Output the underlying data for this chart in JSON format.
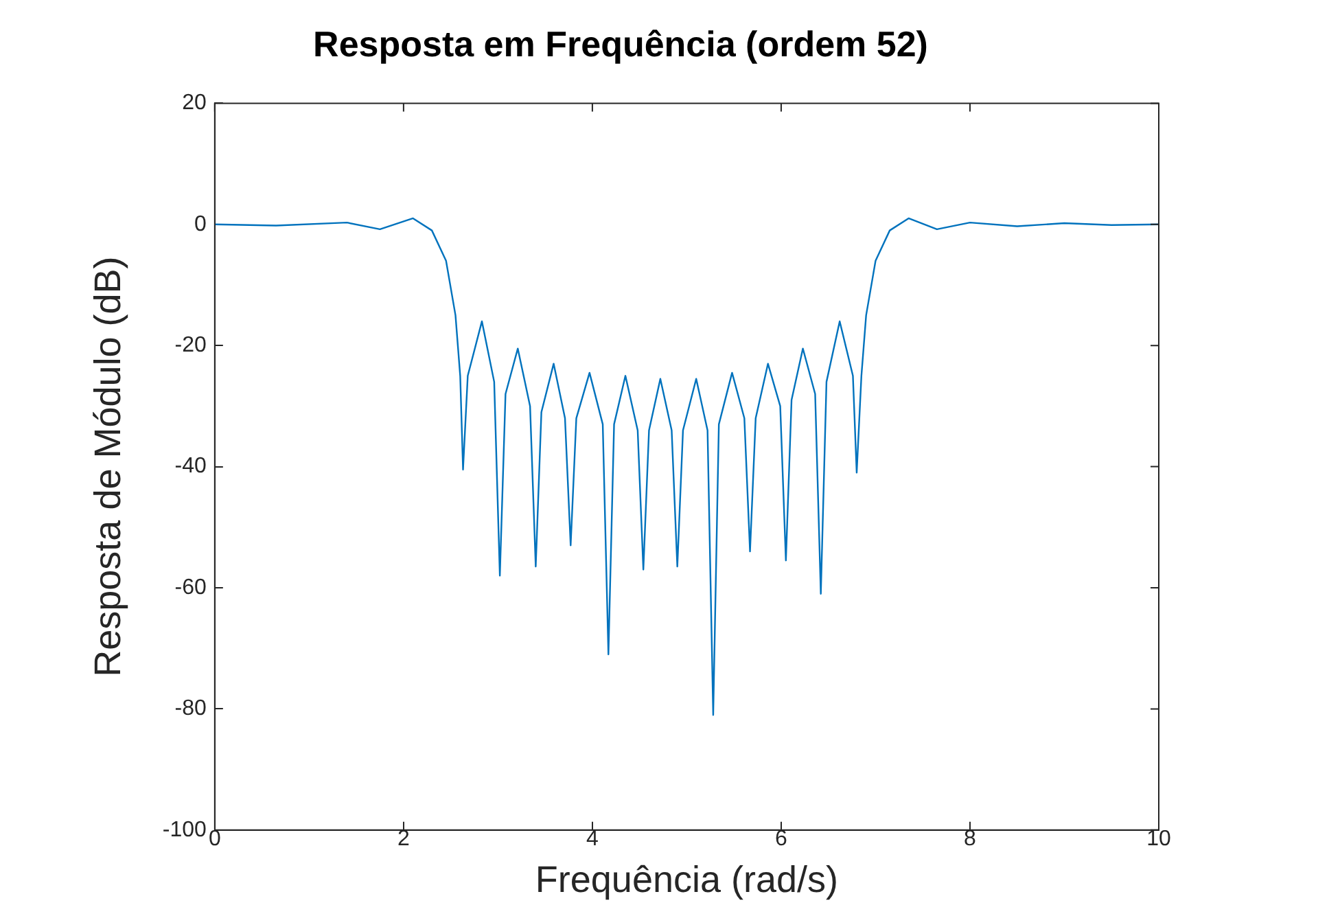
{
  "chart_data": {
    "type": "line",
    "title": "Resposta em Frequência (ordem 52)",
    "xlabel": "Frequência (rad/s)",
    "ylabel": "Resposta de Módulo (dB)",
    "xlim": [
      0,
      10
    ],
    "xticks": [
      0,
      2,
      4,
      6,
      8,
      10
    ],
    "ylim": [
      -100,
      20
    ],
    "yticks": [
      -100,
      -80,
      -60,
      -40,
      -20,
      0,
      20
    ],
    "grid": false,
    "legend": false,
    "marker": "none",
    "line_style": "solid",
    "series": [
      {
        "color": "#0072bd",
        "x": [
          0,
          0.65,
          1.4,
          1.75,
          2.1,
          2.3,
          2.45,
          2.55,
          2.6,
          2.63,
          2.68,
          2.83,
          2.96,
          3.02,
          3.08,
          3.21,
          3.34,
          3.4,
          3.46,
          3.59,
          3.71,
          3.77,
          3.83,
          3.97,
          4.11,
          4.17,
          4.23,
          4.35,
          4.48,
          4.54,
          4.6,
          4.72,
          4.84,
          4.9,
          4.96,
          5.1,
          5.22,
          5.28,
          5.34,
          5.48,
          5.61,
          5.67,
          5.73,
          5.86,
          5.99,
          6.05,
          6.11,
          6.23,
          6.36,
          6.42,
          6.48,
          6.62,
          6.76,
          6.8,
          6.85,
          6.9,
          7.0,
          7.15,
          7.35,
          7.65,
          8.0,
          8.5,
          9.0,
          9.5,
          10
        ],
        "values": [
          0,
          -0.2,
          0.3,
          -0.8,
          1,
          -1,
          -6,
          -15,
          -25,
          -40.5,
          -25,
          -16,
          -26,
          -58,
          -28,
          -20.5,
          -30,
          -56.5,
          -31,
          -23,
          -32,
          -53,
          -32,
          -24.5,
          -33,
          -71,
          -33,
          -25,
          -34,
          -57,
          -34,
          -25.5,
          -34,
          -56.5,
          -34,
          -25.5,
          -34,
          -81,
          -33,
          -24.5,
          -32,
          -54,
          -32,
          -23,
          -30,
          -55.5,
          -29,
          -20.5,
          -28,
          -61,
          -26,
          -16,
          -25,
          -41,
          -25,
          -15,
          -6,
          -1,
          1,
          -0.8,
          0.3,
          -0.3,
          0.2,
          -0.1,
          0
        ]
      }
    ]
  }
}
